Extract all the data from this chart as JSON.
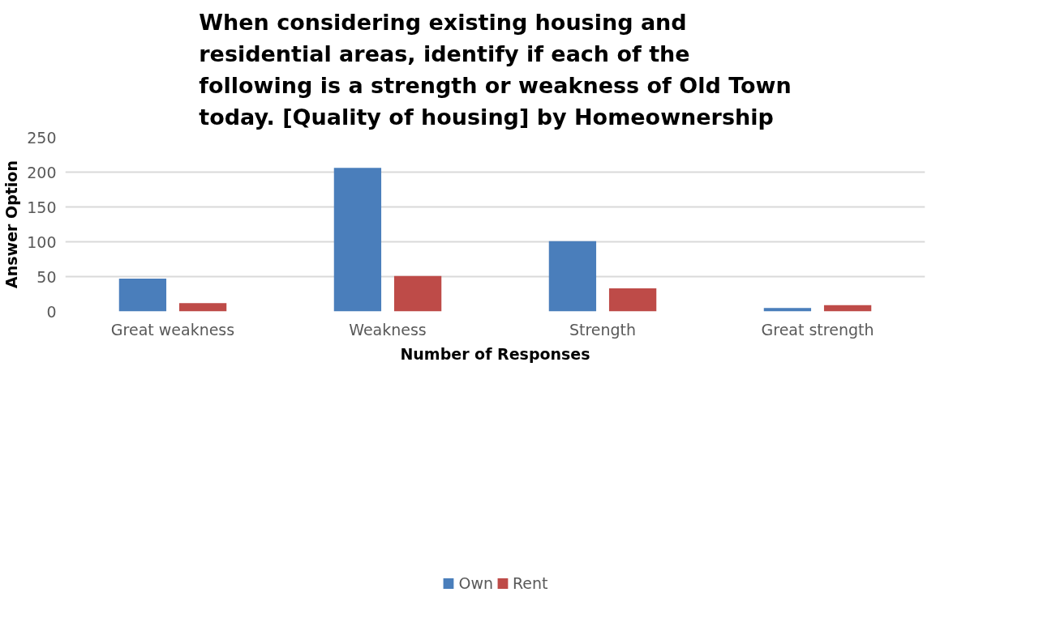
{
  "chart_data": {
    "type": "bar",
    "title": "When considering existing housing and residential areas, identify if each of the following is a strength or weakness of Old Town today. [Quality of housing] by Homeownership",
    "xlabel": "Number of Responses",
    "ylabel": "Answer Option",
    "categories": [
      "Great weakness",
      "Weakness",
      "Strength",
      "Great strength"
    ],
    "series": [
      {
        "name": "Own",
        "color": "#4a7ebb",
        "values": [
          47,
          206,
          101,
          5
        ]
      },
      {
        "name": "Rent",
        "color": "#be4b48",
        "values": [
          12,
          51,
          33,
          9
        ]
      }
    ],
    "ylim": [
      0,
      250
    ],
    "yticks": [
      0,
      50,
      100,
      150,
      200,
      250
    ],
    "grid": "y",
    "legend": "bottom"
  }
}
